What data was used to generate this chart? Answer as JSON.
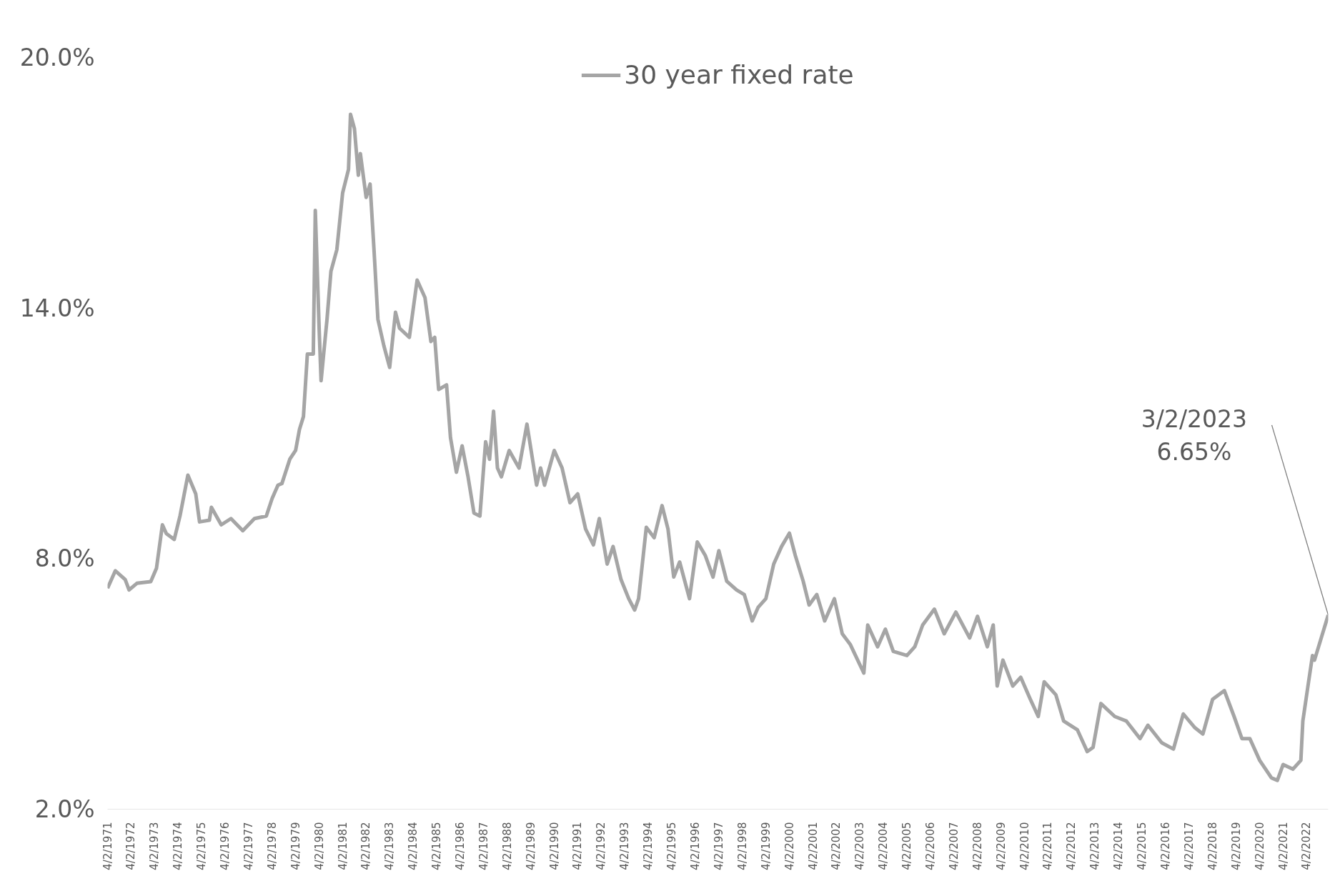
{
  "chart_data": {
    "type": "line",
    "legend": "top",
    "line_style": "solid",
    "marker": "none",
    "grid": false,
    "series": [
      {
        "name": "30 year fixed rate",
        "color": "#a5a5a5",
        "x": [
          "1971-04-02",
          "1971-08",
          "1972-01",
          "1972-03",
          "1972-07",
          "1973-02",
          "1973-05",
          "1973-08",
          "1973-10",
          "1974-02",
          "1974-05",
          "1974-09",
          "1975-01",
          "1975-03",
          "1975-08",
          "1975-09",
          "1976-02",
          "1976-07",
          "1977-01",
          "1977-07",
          "1978-01",
          "1978-04",
          "1978-07",
          "1978-09",
          "1979-01",
          "1979-04",
          "1979-06",
          "1979-08",
          "1979-10",
          "1980-01",
          "1980-02",
          "1980-04",
          "1980-05",
          "1980-08",
          "1980-10",
          "1981-01",
          "1981-04",
          "1981-07",
          "1981-08",
          "1981-10",
          "1981-12",
          "1982-01",
          "1982-04",
          "1982-06",
          "1982-08",
          "1982-10",
          "1983-01",
          "1983-04",
          "1983-07",
          "1983-09",
          "1984-02",
          "1984-06",
          "1984-10",
          "1985-01",
          "1985-03",
          "1985-05",
          "1985-09",
          "1985-11",
          "1986-02",
          "1986-05",
          "1986-08",
          "1986-11",
          "1987-02",
          "1987-05",
          "1987-07",
          "1987-09",
          "1987-11",
          "1988-01",
          "1988-05",
          "1988-10",
          "1989-02",
          "1989-07",
          "1989-09",
          "1989-11",
          "1990-04",
          "1990-08",
          "1990-12",
          "1991-04",
          "1991-08",
          "1991-12",
          "1992-03",
          "1992-07",
          "1992-10",
          "1993-02",
          "1993-06",
          "1993-09",
          "1993-11",
          "1994-03",
          "1994-07",
          "1994-11",
          "1995-02",
          "1995-05",
          "1995-08",
          "1996-01",
          "1996-05",
          "1996-09",
          "1997-01",
          "1997-04",
          "1997-08",
          "1998-01",
          "1998-05",
          "1998-09",
          "1998-12",
          "1999-04",
          "1999-08",
          "1999-12",
          "2000-04",
          "2000-07",
          "2000-11",
          "2001-02",
          "2001-06",
          "2001-10",
          "2002-03",
          "2002-07",
          "2002-11",
          "2003-06",
          "2003-08",
          "2004-01",
          "2004-05",
          "2004-09",
          "2005-04",
          "2005-08",
          "2005-12",
          "2006-06",
          "2006-11",
          "2007-05",
          "2007-12",
          "2008-04",
          "2008-09",
          "2008-12",
          "2009-02",
          "2009-05",
          "2009-10",
          "2010-02",
          "2010-07",
          "2010-11",
          "2011-02",
          "2011-08",
          "2011-12",
          "2012-07",
          "2012-12",
          "2013-03",
          "2013-07",
          "2014-02",
          "2014-08",
          "2015-03",
          "2015-07",
          "2016-02",
          "2016-08",
          "2017-01",
          "2017-07",
          "2017-11",
          "2018-04",
          "2018-10",
          "2019-03",
          "2019-07",
          "2019-11",
          "2020-04",
          "2020-10",
          "2021-01",
          "2021-04",
          "2021-09",
          "2022-01",
          "2022-02",
          "2022-05",
          "2022-07",
          "2022-08",
          "2023-03-02"
        ],
        "values": [
          7.29,
          7.71,
          7.5,
          7.25,
          7.41,
          7.45,
          7.77,
          8.81,
          8.6,
          8.46,
          9.02,
          10.0,
          9.55,
          8.88,
          8.92,
          9.23,
          8.81,
          8.96,
          8.67,
          8.96,
          9.02,
          9.44,
          9.76,
          9.8,
          10.38,
          10.59,
          11.1,
          11.4,
          12.9,
          12.9,
          16.34,
          13.5,
          12.26,
          13.73,
          14.88,
          15.4,
          16.76,
          17.32,
          18.64,
          18.3,
          17.18,
          17.7,
          16.65,
          16.97,
          15.4,
          13.73,
          13.1,
          12.58,
          13.9,
          13.52,
          13.3,
          14.67,
          14.25,
          13.2,
          13.3,
          12.05,
          12.16,
          10.9,
          10.07,
          10.7,
          9.96,
          9.09,
          9.02,
          10.8,
          10.38,
          11.53,
          10.17,
          9.96,
          10.59,
          10.17,
          11.22,
          9.76,
          10.17,
          9.76,
          10.59,
          10.17,
          9.34,
          9.55,
          8.71,
          8.33,
          8.96,
          7.87,
          8.29,
          7.5,
          7.04,
          6.77,
          7.04,
          8.75,
          8.5,
          9.27,
          8.71,
          7.56,
          7.92,
          7.04,
          8.4,
          8.08,
          7.56,
          8.19,
          7.46,
          7.25,
          7.14,
          6.51,
          6.83,
          7.04,
          7.87,
          8.29,
          8.61,
          8.08,
          7.46,
          6.89,
          7.14,
          6.51,
          7.04,
          6.2,
          5.95,
          5.26,
          6.41,
          5.89,
          6.31,
          5.78,
          5.68,
          5.89,
          6.41,
          6.79,
          6.2,
          6.72,
          6.1,
          6.62,
          5.89,
          6.41,
          4.95,
          5.57,
          4.95,
          5.16,
          4.63,
          4.22,
          5.05,
          4.74,
          4.11,
          3.9,
          3.38,
          3.48,
          4.53,
          4.22,
          4.11,
          3.69,
          4.01,
          3.59,
          3.44,
          4.28,
          3.95,
          3.8,
          4.63,
          4.84,
          4.22,
          3.69,
          3.69,
          3.17,
          2.75,
          2.69,
          3.07,
          2.96,
          3.17,
          4.11,
          5.05,
          5.68,
          5.57,
          6.65
        ]
      }
    ],
    "ylim": [
      2,
      20
    ],
    "yticks": [
      {
        "value": 2,
        "label": "2.0%"
      },
      {
        "value": 8,
        "label": "8.0%"
      },
      {
        "value": 14,
        "label": "14.0%"
      },
      {
        "value": 20,
        "label": "20.0%"
      }
    ],
    "xlim": [
      "1971-04-02",
      "2023-03-02"
    ],
    "xticks": [
      {
        "value": "1971-04-02",
        "label": "4/2/1971"
      },
      {
        "value": "1972-04-02",
        "label": "4/2/1972"
      },
      {
        "value": "1973-04-02",
        "label": "4/2/1973"
      },
      {
        "value": "1974-04-02",
        "label": "4/2/1974"
      },
      {
        "value": "1975-04-02",
        "label": "4/2/1975"
      },
      {
        "value": "1976-04-02",
        "label": "4/2/1976"
      },
      {
        "value": "1977-04-02",
        "label": "4/2/1977"
      },
      {
        "value": "1978-04-02",
        "label": "4/2/1978"
      },
      {
        "value": "1979-04-02",
        "label": "4/2/1979"
      },
      {
        "value": "1980-04-02",
        "label": "4/2/1980"
      },
      {
        "value": "1981-04-02",
        "label": "4/2/1981"
      },
      {
        "value": "1982-04-02",
        "label": "4/2/1982"
      },
      {
        "value": "1983-04-02",
        "label": "4/2/1983"
      },
      {
        "value": "1984-04-02",
        "label": "4/2/1984"
      },
      {
        "value": "1985-04-02",
        "label": "4/2/1985"
      },
      {
        "value": "1986-04-02",
        "label": "4/2/1986"
      },
      {
        "value": "1987-04-02",
        "label": "4/2/1987"
      },
      {
        "value": "1988-04-02",
        "label": "4/2/1988"
      },
      {
        "value": "1989-04-02",
        "label": "4/2/1989"
      },
      {
        "value": "1990-04-02",
        "label": "4/2/1990"
      },
      {
        "value": "1991-04-02",
        "label": "4/2/1991"
      },
      {
        "value": "1992-04-02",
        "label": "4/2/1992"
      },
      {
        "value": "1993-04-02",
        "label": "4/2/1993"
      },
      {
        "value": "1994-04-02",
        "label": "4/2/1994"
      },
      {
        "value": "1995-04-02",
        "label": "4/2/1995"
      },
      {
        "value": "1996-04-02",
        "label": "4/2/1996"
      },
      {
        "value": "1997-04-02",
        "label": "4/2/1997"
      },
      {
        "value": "1998-04-02",
        "label": "4/2/1998"
      },
      {
        "value": "1999-04-02",
        "label": "4/2/1999"
      },
      {
        "value": "2000-04-02",
        "label": "4/2/2000"
      },
      {
        "value": "2001-04-02",
        "label": "4/2/2001"
      },
      {
        "value": "2002-04-02",
        "label": "4/2/2002"
      },
      {
        "value": "2003-04-02",
        "label": "4/2/2003"
      },
      {
        "value": "2004-04-02",
        "label": "4/2/2004"
      },
      {
        "value": "2005-04-02",
        "label": "4/2/2005"
      },
      {
        "value": "2006-04-02",
        "label": "4/2/2006"
      },
      {
        "value": "2007-04-02",
        "label": "4/2/2007"
      },
      {
        "value": "2008-04-02",
        "label": "4/2/2008"
      },
      {
        "value": "2009-04-02",
        "label": "4/2/2009"
      },
      {
        "value": "2010-04-02",
        "label": "4/2/2010"
      },
      {
        "value": "2011-04-02",
        "label": "4/2/2011"
      },
      {
        "value": "2012-04-02",
        "label": "4/2/2012"
      },
      {
        "value": "2013-04-02",
        "label": "4/2/2013"
      },
      {
        "value": "2014-04-02",
        "label": "4/2/2014"
      },
      {
        "value": "2015-04-02",
        "label": "4/2/2015"
      },
      {
        "value": "2016-04-02",
        "label": "4/2/2016"
      },
      {
        "value": "2017-04-02",
        "label": "4/2/2017"
      },
      {
        "value": "2018-04-02",
        "label": "4/2/2018"
      },
      {
        "value": "2019-04-02",
        "label": "4/2/2019"
      },
      {
        "value": "2020-04-02",
        "label": "4/2/2020"
      },
      {
        "value": "2021-04-02",
        "label": "4/2/2021"
      },
      {
        "value": "2022-04-02",
        "label": "4/2/2022"
      }
    ],
    "annotations": [
      {
        "text": "3/2/2023\n6.65%",
        "x": "2023-03-02",
        "y": 6.65
      }
    ]
  }
}
